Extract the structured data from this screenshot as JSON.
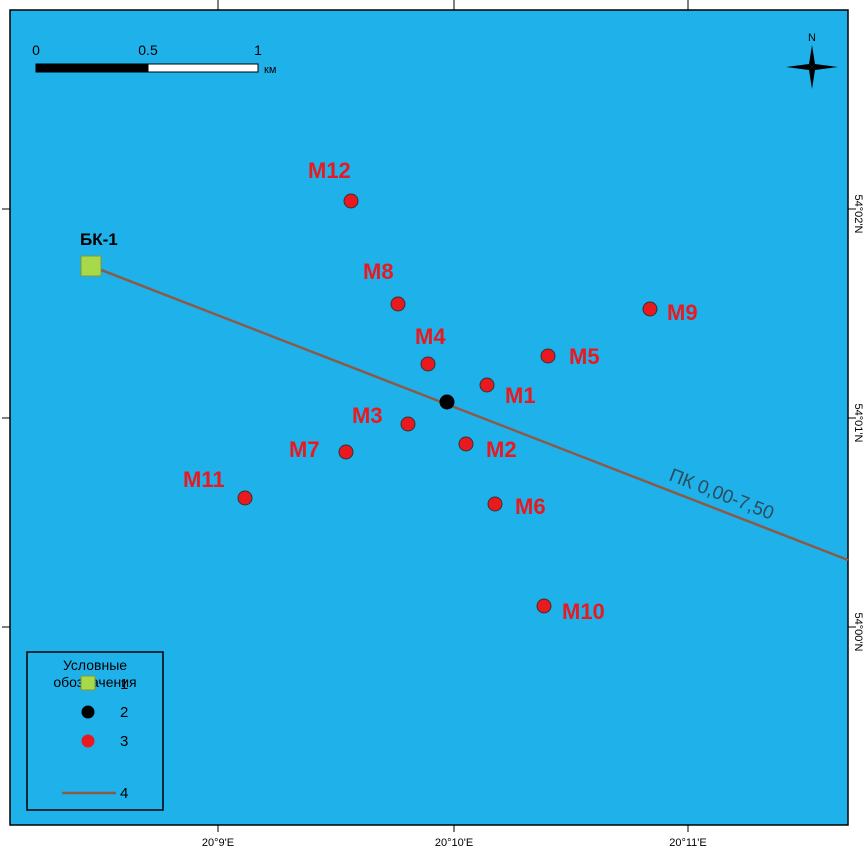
{
  "map": {
    "colors": {
      "water": "#1fb2ea",
      "points": "#e8191f",
      "well": "#a8d94a",
      "center": "#000000",
      "profile": "#8a5a4a",
      "labels": "#e8191f"
    },
    "scale_bar": {
      "ticks": [
        "0",
        "0.5",
        "1"
      ],
      "unit": "км"
    },
    "north_arrow": {
      "label": "N"
    },
    "axis": {
      "x_labels": [
        "20°9'E",
        "20°10'E",
        "20°11'E"
      ],
      "y_labels": [
        "54°02'N",
        "54°01'N",
        "54°00'N"
      ]
    },
    "well": {
      "label": "БК-1"
    },
    "profile_line": {
      "label": "ПК 0,00-7,50"
    },
    "points": [
      {
        "label": "M12"
      },
      {
        "label": "M8"
      },
      {
        "label": "M9"
      },
      {
        "label": "M4"
      },
      {
        "label": "M5"
      },
      {
        "label": "M1"
      },
      {
        "label": "M3"
      },
      {
        "label": "M2"
      },
      {
        "label": "M7"
      },
      {
        "label": "M11"
      },
      {
        "label": "M6"
      },
      {
        "label": "M10"
      }
    ],
    "legend": {
      "title_line1": "Условные",
      "title_line2": "обозначения",
      "items": [
        {
          "symbol": "square-green",
          "label": "1"
        },
        {
          "symbol": "circle-black",
          "label": "2"
        },
        {
          "symbol": "circle-red",
          "label": "3"
        },
        {
          "symbol": "line-brown",
          "label": "4"
        }
      ]
    }
  }
}
